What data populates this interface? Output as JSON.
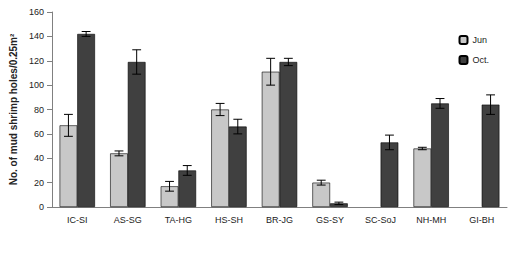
{
  "chart_data": {
    "type": "bar",
    "y_label": "No. of mud shrimp holes/0.25m²",
    "categories": [
      "IC-SI",
      "AS-SG",
      "TA-HG",
      "HS-SH",
      "BR-JG",
      "GS-SY",
      "SC-SoJ",
      "NH-MH",
      "GI-BH"
    ],
    "series": [
      {
        "name": "Jun",
        "color": "#c8c8c8",
        "values": [
          67,
          44,
          17,
          80,
          111,
          20,
          null,
          48,
          null
        ],
        "errors": [
          9,
          2,
          4,
          5,
          11,
          2,
          null,
          1,
          null
        ]
      },
      {
        "name": "Oct.",
        "color": "#404040",
        "values": [
          142,
          119,
          30,
          66,
          119,
          3,
          53,
          85,
          84
        ],
        "errors": [
          2,
          10,
          4,
          6,
          3,
          1,
          6,
          4,
          8
        ]
      }
    ],
    "ylim": [
      0,
      160
    ],
    "yticks": [
      0,
      20,
      40,
      60,
      80,
      100,
      120,
      140,
      160
    ],
    "grid": false,
    "legend": "upper right"
  }
}
